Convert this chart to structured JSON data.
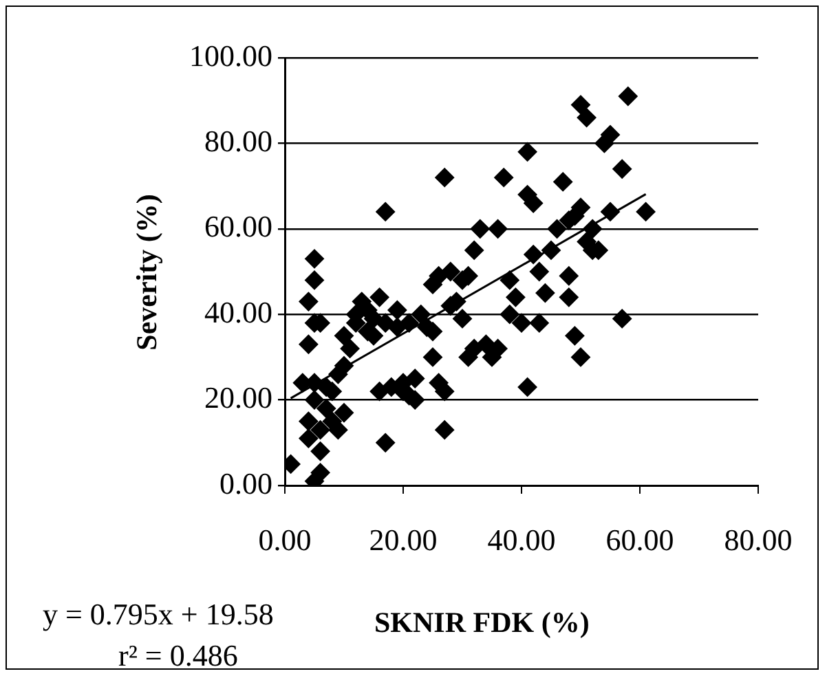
{
  "chart_data": {
    "type": "scatter",
    "xlabel": "SKNIR FDK (%)",
    "ylabel": "Severity (%)",
    "annotations": [
      "y = 0.795x + 19.58",
      "r² = 0.486"
    ],
    "xlim": [
      0,
      80
    ],
    "ylim": [
      0,
      100
    ],
    "xticks": [
      {
        "value": 0,
        "label": "0.00"
      },
      {
        "value": 20,
        "label": "20.00"
      },
      {
        "value": 40,
        "label": "40.00"
      },
      {
        "value": 60,
        "label": "60.00"
      },
      {
        "value": 80,
        "label": "80.00"
      }
    ],
    "yticks": [
      {
        "value": 0,
        "label": "0.00"
      },
      {
        "value": 20,
        "label": "20.00"
      },
      {
        "value": 40,
        "label": "40.00"
      },
      {
        "value": 60,
        "label": "60.00"
      },
      {
        "value": 80,
        "label": "80.00"
      },
      {
        "value": 100,
        "label": "100.00"
      }
    ],
    "grid": "y",
    "legend": false,
    "series": [
      {
        "marker": "diamond",
        "color": "#000000",
        "x": [
          1,
          4,
          4,
          5,
          6,
          6,
          6,
          5,
          5,
          3,
          4,
          5,
          4,
          5,
          5,
          6,
          7,
          7,
          8,
          8,
          9,
          9,
          10,
          10,
          10,
          11,
          12,
          12,
          13,
          14,
          14,
          15,
          15,
          16,
          16,
          17,
          17,
          17,
          18,
          19,
          19,
          20,
          20,
          21,
          21,
          22,
          22,
          23,
          24,
          25,
          25,
          25,
          26,
          26,
          27,
          27,
          27,
          28,
          28,
          29,
          30,
          30,
          31,
          31,
          32,
          32,
          33,
          34,
          35,
          36,
          36,
          37,
          38,
          38,
          39,
          40,
          41,
          41,
          41,
          42,
          42,
          43,
          43,
          44,
          45,
          46,
          47,
          48,
          48,
          48,
          49,
          49,
          50,
          50,
          50,
          51,
          51,
          52,
          52,
          53,
          54,
          55,
          55,
          57,
          57,
          58,
          61
        ],
        "values": [
          5,
          11,
          15,
          1,
          3,
          8,
          13,
          20,
          24,
          24,
          33,
          38,
          43,
          48,
          53,
          38,
          18,
          23,
          15,
          22,
          13,
          26,
          17,
          28,
          35,
          32,
          40,
          38,
          43,
          36,
          41,
          39,
          35,
          44,
          22,
          38,
          10,
          64,
          23,
          41,
          37,
          24,
          22,
          38,
          21,
          20,
          25,
          40,
          37,
          36,
          30,
          47,
          49,
          24,
          13,
          22,
          72,
          50,
          42,
          43,
          48,
          39,
          30,
          49,
          32,
          55,
          60,
          33,
          30,
          32,
          60,
          72,
          48,
          40,
          44,
          38,
          78,
          68,
          23,
          66,
          54,
          38,
          50,
          45,
          55,
          60,
          71,
          62,
          44,
          49,
          63,
          35,
          89,
          30,
          65,
          86,
          57,
          55,
          60,
          55,
          80,
          82,
          64,
          74,
          39,
          91,
          64
        ]
      },
      {
        "type": "line",
        "color": "#000000",
        "x": [
          1,
          61
        ],
        "values": [
          20.4,
          68.1
        ],
        "marker": "none"
      }
    ]
  }
}
